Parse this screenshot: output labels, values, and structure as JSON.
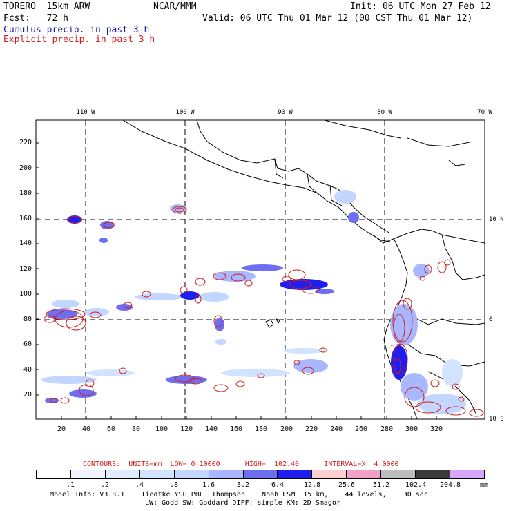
{
  "header": {
    "model": "TORERO  15km ARW",
    "org": "NCAR/MMM",
    "init": "Init: 06 UTC Mon 27 Feb 12",
    "fcst": "Fcst:   72 h",
    "valid": "Valid: 06 UTC Thu 01 Mar 12 (00 CST Thu 01 Mar 12)",
    "line_cumulus": "Cumulus precip. in past 3 h",
    "line_explicit": "Explicit precip. in past 3 h"
  },
  "colors": {
    "cumulus": "#1a1aa8",
    "explicit": "#d11a1a"
  },
  "map": {
    "x_ticks": [
      "20",
      "40",
      "60",
      "80",
      "100",
      "120",
      "140",
      "160",
      "180",
      "200",
      "220",
      "240",
      "260",
      "280",
      "300",
      "320"
    ],
    "y_ticks": [
      "20",
      "40",
      "60",
      "80",
      "100",
      "120",
      "140",
      "160",
      "180",
      "200",
      "220"
    ],
    "lon_labels": [
      "110 W",
      "100 W",
      "90 W",
      "80 W",
      "70 W"
    ],
    "lat_labels": [
      "10 N",
      "0",
      "10 S"
    ]
  },
  "footer": {
    "contours": "CONTOURS:  UNITS=mm  LOW= 0.10000      HIGH=  102.40      INTERVAL=X  4.0000",
    "colorbar_labels": [
      ".1",
      ".2",
      ".4",
      ".8",
      "1.6",
      "3.2",
      "6.4",
      "12.8",
      "25.6",
      "51.2",
      "102.4",
      "204.8"
    ],
    "colorbar_unit": "mm",
    "colorbar_colors": [
      "#ffffff",
      "#eef3ff",
      "#e1ebff",
      "#d2e3ff",
      "#c2d6ff",
      "#a9b7ff",
      "#6e6ef0",
      "#1e1eee",
      "#ffcfcf",
      "#f2a0c8",
      "#bdbdbd",
      "#3a3a3a",
      "#d7a6ff"
    ],
    "model_info_1": "Model Info: V3.3.1    Tiedtke YSU PBL  Thompson    Noah LSM  15 km,    44 levels,    30 sec",
    "model_info_2": "LW: Godd SW: Goddard DIFF: simple KM: 2D Smagor"
  }
}
